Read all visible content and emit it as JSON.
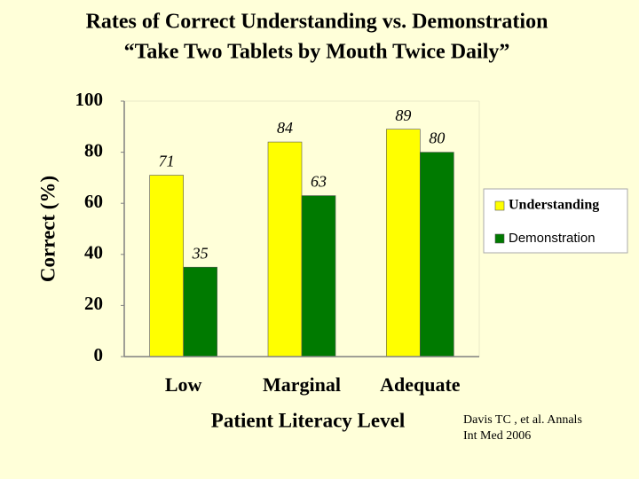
{
  "chart_data": {
    "type": "bar",
    "title": "Rates of Correct Understanding vs. Demonstration",
    "subtitle": "“Take Two Tablets by Mouth Twice Daily”",
    "y_label": "Correct (%)",
    "x_label": "Patient Literacy Level",
    "source": [
      "Davis TC , et al. Annals",
      "Int Med 2006"
    ],
    "categories": [
      "Low",
      "Marginal",
      "Adequate"
    ],
    "series": [
      {
        "name": "Understanding",
        "color": "#ffff00",
        "values": [
          71,
          84,
          89
        ]
      },
      {
        "name": "Demonstration",
        "color": "#007a00",
        "values": [
          35,
          63,
          80
        ]
      }
    ],
    "ylim": [
      0,
      100
    ],
    "yticks": [
      0,
      20,
      40,
      60,
      80,
      100
    ],
    "legend": "right"
  }
}
